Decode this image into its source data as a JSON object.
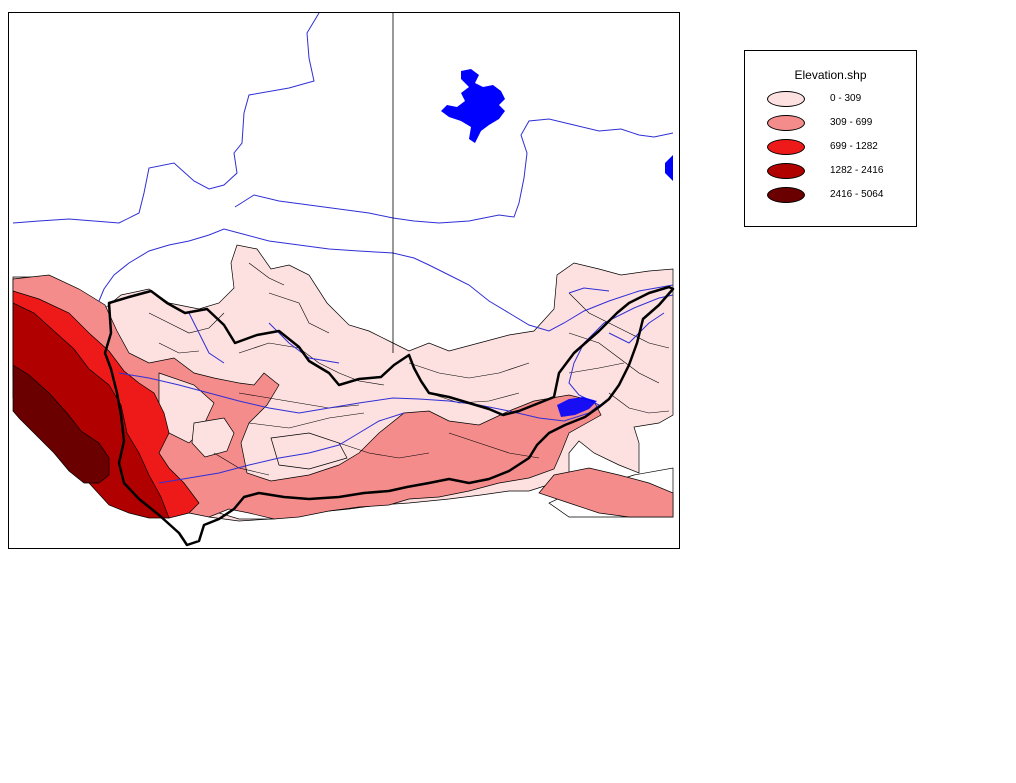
{
  "legend": {
    "title": "Elevation.shp",
    "classes": [
      {
        "label": "0 - 309",
        "color": "#fde0e0"
      },
      {
        "label": "309 - 699",
        "color": "#f48c8c"
      },
      {
        "label": "699 - 1282",
        "color": "#ee1a1a"
      },
      {
        "label": "1282 - 2416",
        "color": "#b00000"
      },
      {
        "label": "2416 - 5064",
        "color": "#6b0000"
      }
    ]
  },
  "colors": {
    "river": "#2f2fd6",
    "lake": "#0000ff",
    "boundary": "#000000",
    "zone_outline": "#000000"
  }
}
